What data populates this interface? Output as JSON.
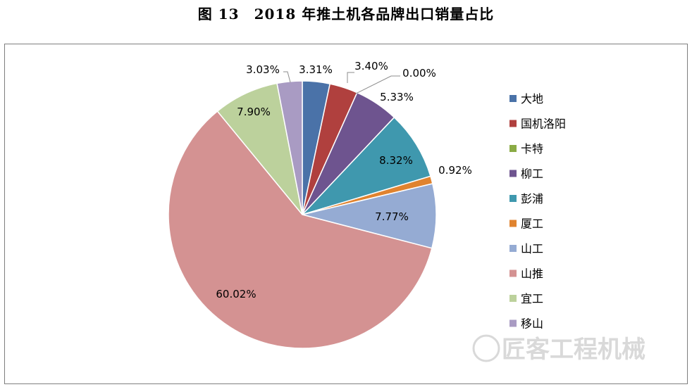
{
  "figure_title": "图 13　2018 年推土机各品牌出口销量占比",
  "watermark": "匠客工程机械",
  "chart_data": {
    "type": "pie",
    "title": "",
    "legend_position": "right",
    "slices": [
      {
        "label": "大地",
        "value": 3.31,
        "display": "3.31%",
        "color": "#4a72a8"
      },
      {
        "label": "国机洛阳",
        "value": 3.4,
        "display": "3.40%",
        "color": "#b0403e"
      },
      {
        "label": "卡特",
        "value": 0.0,
        "display": "0.00%",
        "color": "#8aab45"
      },
      {
        "label": "柳工",
        "value": 5.33,
        "display": "5.33%",
        "color": "#6e548f"
      },
      {
        "label": "彭浦",
        "value": 8.32,
        "display": "8.32%",
        "color": "#3f98ae"
      },
      {
        "label": "厦工",
        "value": 0.92,
        "display": "0.92%",
        "color": "#e0832f"
      },
      {
        "label": "山工",
        "value": 7.77,
        "display": "7.77%",
        "color": "#95abd3"
      },
      {
        "label": "山推",
        "value": 60.02,
        "display": "60.02%",
        "color": "#d49292"
      },
      {
        "label": "宜工",
        "value": 7.9,
        "display": "7.90%",
        "color": "#bcd19c"
      },
      {
        "label": "移山",
        "value": 3.03,
        "display": "3.03%",
        "color": "#a99bc3"
      }
    ]
  }
}
